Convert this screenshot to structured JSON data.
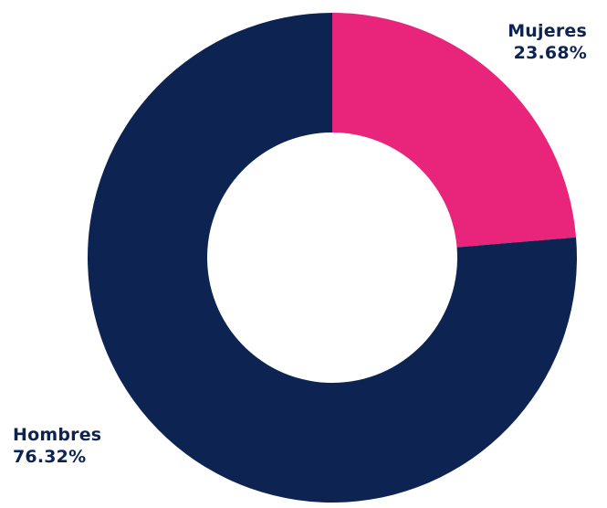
{
  "chart_data": {
    "type": "pie",
    "donut": true,
    "title": "",
    "categories": [
      "Mujeres",
      "Hombres"
    ],
    "values": [
      23.68,
      76.32
    ],
    "value_labels": [
      "23.68%",
      "76.32%"
    ],
    "colors": [
      "#e8257a",
      "#0d2452"
    ],
    "start_angle_deg": 0,
    "direction": "clockwise",
    "legend": "none"
  },
  "colors": {
    "label_text": "#0d2452",
    "background": "#ffffff"
  }
}
